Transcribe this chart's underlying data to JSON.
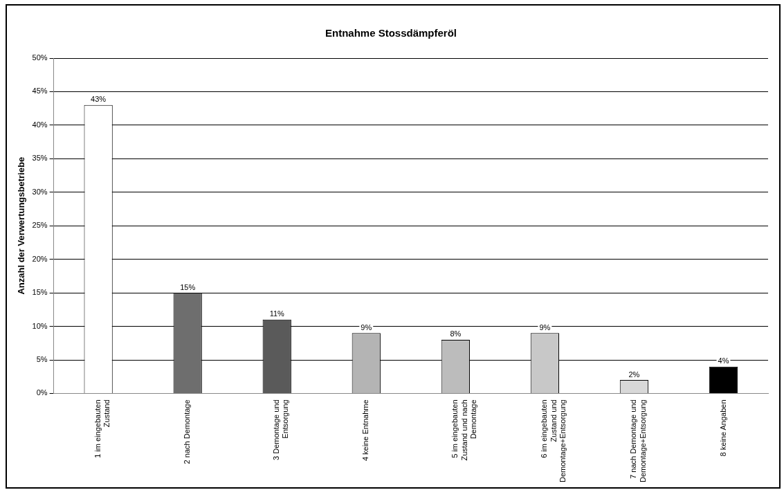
{
  "chart_data": {
    "type": "bar",
    "title": "Entnahme Stossdämpferöl",
    "ylabel": "Anzahl der Verwertungsbetriebe",
    "categories": [
      "1 im eingebauten Zustand",
      "2 nach Demontage",
      "3 Demontage und Entsorgung",
      "4 keine Entnahme",
      "5 im eingebauten Zustand und nach Demontage",
      "6 im eingebauten Zustand und Demontage+Entsorgung",
      "7 nach Demontage und Demontage+Entsorgung",
      "8 keine Angaben"
    ],
    "values": [
      43,
      15,
      11,
      9,
      8,
      9,
      2,
      4
    ],
    "value_labels": [
      "43%",
      "15%",
      "11%",
      "9%",
      "8%",
      "9%",
      "2%",
      "4%"
    ],
    "colors": [
      "#ffffff",
      "#6e6e6e",
      "#5a5a5a",
      "#b4b4b4",
      "#bcbcbc",
      "#c8c8c8",
      "#d8d8d8",
      "#000000"
    ],
    "ylim": [
      0,
      50
    ],
    "yticks": [
      {
        "value": 0,
        "label": "0%"
      },
      {
        "value": 5,
        "label": "5%"
      },
      {
        "value": 10,
        "label": "10%"
      },
      {
        "value": 15,
        "label": "15%"
      },
      {
        "value": 20,
        "label": "20%"
      },
      {
        "value": 25,
        "label": "25%"
      },
      {
        "value": 30,
        "label": "30%"
      },
      {
        "value": 35,
        "label": "35%"
      },
      {
        "value": 40,
        "label": "40%"
      },
      {
        "value": 45,
        "label": "45%"
      },
      {
        "value": 50,
        "label": "50%"
      }
    ],
    "grid": "y",
    "legend": false
  }
}
